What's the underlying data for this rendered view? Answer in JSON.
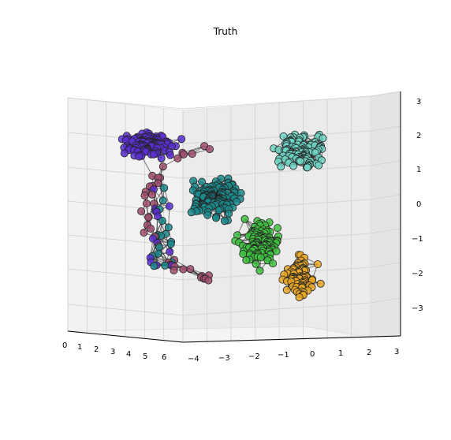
{
  "chart_data": {
    "type": "scatter",
    "projection": "3d",
    "title": "Truth",
    "xlabel": "",
    "ylabel": "",
    "zlabel": "",
    "x_ticks": [
      "0",
      "1",
      "2",
      "3",
      "4",
      "5",
      "6"
    ],
    "y_ticks": [
      "−4",
      "−3",
      "−2",
      "−1",
      "0",
      "1",
      "2",
      "3"
    ],
    "z_ticks": [
      "3",
      "2",
      "1",
      "0",
      "−1",
      "−2",
      "−3"
    ],
    "grid": true,
    "edges": "network graph connecting nearby points (dark lines)",
    "clusters": [
      {
        "color": "#5b2fd1",
        "center_screen_hint": "upper-left"
      },
      {
        "color": "#1c8a8c",
        "center_screen_hint": "center"
      },
      {
        "color": "#6fd3c4",
        "center_screen_hint": "upper-right"
      },
      {
        "color": "#3fbf3f",
        "center_screen_hint": "lower-center"
      },
      {
        "color": "#e8a626",
        "center_screen_hint": "lower-right"
      },
      {
        "color": "#a04d6e",
        "center_screen_hint": "sparse ring"
      }
    ]
  }
}
